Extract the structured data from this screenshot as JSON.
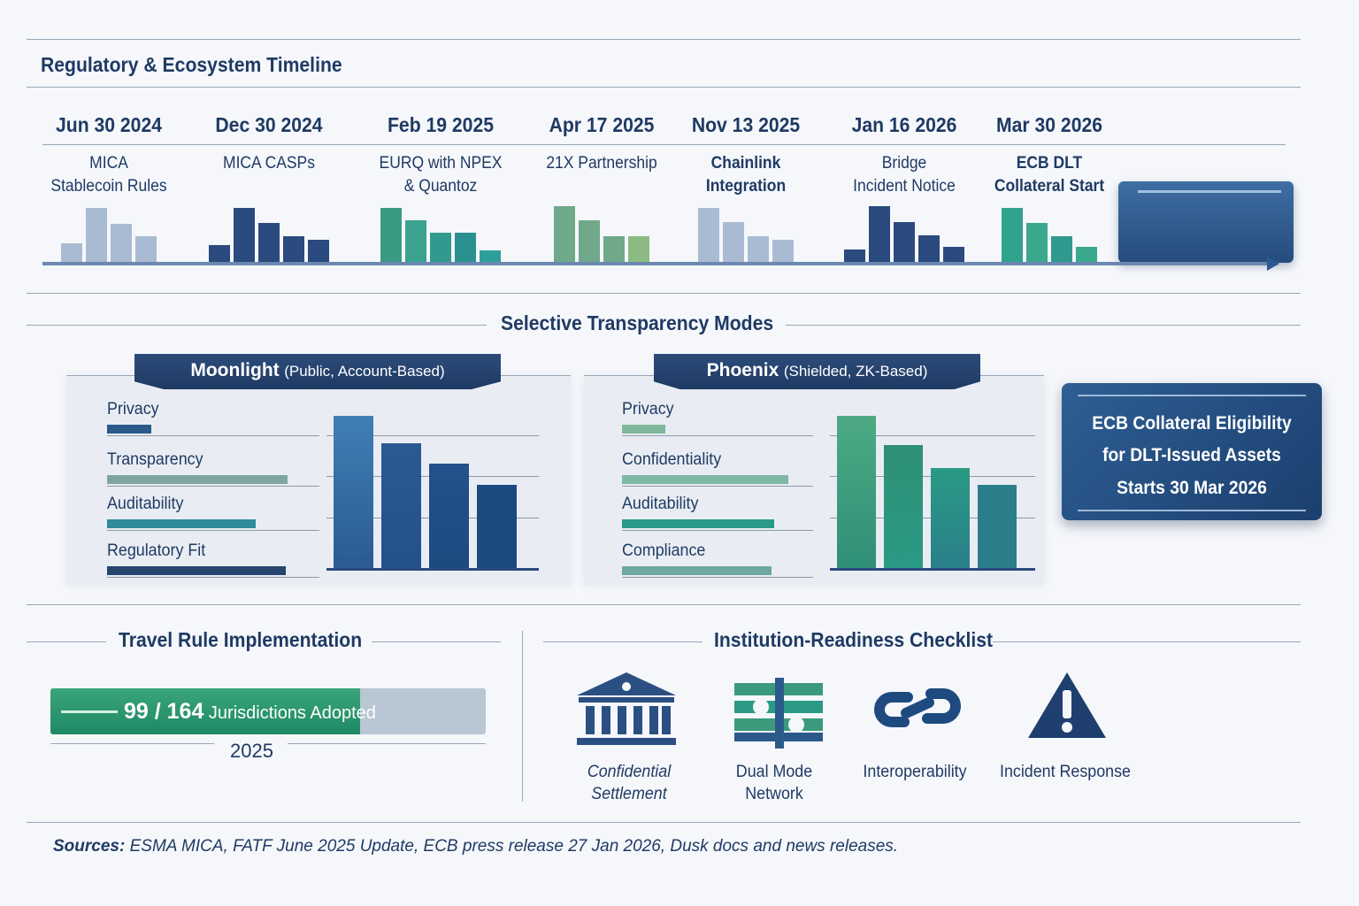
{
  "timeline": {
    "title": "Regulatory & Ecosystem Timeline",
    "events": [
      {
        "date": "Jun 30 2024",
        "line1": "MICA",
        "line2": "Stablecoin Rules",
        "bold": false,
        "bars": [
          22,
          62,
          44,
          30
        ],
        "palette": [
          "#a9bbd3",
          "#a9bbd3",
          "#a9bbd3",
          "#a9bbd3"
        ]
      },
      {
        "date": "Dec 30 2024",
        "line1": "MICA CASPs",
        "line2": "",
        "bold": false,
        "bars": [
          20,
          62,
          45,
          30,
          26
        ],
        "palette": [
          "#2b4a7d",
          "#2b4a7d",
          "#2b4a7d",
          "#2b4a7d",
          "#2b4a7d"
        ]
      },
      {
        "date": "Feb 19 2025",
        "line1": "EURQ with NPEX",
        "line2": "& Quantoz",
        "bold": false,
        "bars": [
          62,
          48,
          34,
          34,
          14
        ],
        "palette": [
          "#3a9a83",
          "#3aa28f",
          "#2f9a8d",
          "#2a9190",
          "#2f9f9b"
        ]
      },
      {
        "date": "Apr 17 2025",
        "line1": "21X Partnership",
        "line2": "",
        "bold": false,
        "bars": [
          64,
          48,
          30,
          30
        ],
        "palette": [
          "#6fa98a",
          "#6fa98a",
          "#6fa98a",
          "#8cbb82"
        ]
      },
      {
        "date": "Nov 13 2025",
        "line1": "Chainlink",
        "line2": "Integration",
        "bold": true,
        "bars": [
          62,
          46,
          30,
          26
        ],
        "palette": [
          "#a9bbd3",
          "#a9bbd3",
          "#a9bbd3",
          "#a9bbd3"
        ]
      },
      {
        "date": "Jan 16 2026",
        "line1": "Bridge",
        "line2": "Incident Notice",
        "bold": false,
        "bars": [
          15,
          64,
          46,
          31,
          18
        ],
        "palette": [
          "#2b4a7d",
          "#2b4a7d",
          "#2b4a7d",
          "#2b4a7d",
          "#2b4a7d"
        ]
      },
      {
        "date": "Mar 30 2026",
        "line1": "ECB DLT",
        "line2": "Collateral Start",
        "bold": true,
        "bars": [
          62,
          45,
          30,
          18
        ],
        "palette": [
          "#2fa38b",
          "#3aa88c",
          "#2f9a8d",
          "#3aa88c"
        ]
      }
    ]
  },
  "transparency": {
    "title": "Selective Transparency Modes",
    "moonlight": {
      "name": "Moonlight",
      "subtitle": "(Public, Account-Based)",
      "metrics": [
        {
          "label": "Privacy",
          "score": 0.21
        },
        {
          "label": "Transparency",
          "score": 0.85
        },
        {
          "label": "Auditability",
          "score": 0.7
        },
        {
          "label": "Regulatory Fit",
          "score": 0.84
        }
      ],
      "bars": [
        100,
        82,
        69,
        55
      ],
      "colors": [
        "#3f7fb5",
        "#2b5a93",
        "#24508c",
        "#1c4a80"
      ],
      "metric_colors": [
        "#2b5a8a",
        "#7fa5a0",
        "#2f8a9a",
        "#24456e"
      ]
    },
    "phoenix": {
      "name": "Phoenix",
      "subtitle": "(Shielded, ZK-Based)",
      "metrics": [
        {
          "label": "Privacy",
          "score": 0.21
        },
        {
          "label": "Confidentiality",
          "score": 0.8
        },
        {
          "label": "Auditability",
          "score": 0.73
        },
        {
          "label": "Compliance",
          "score": 0.72
        }
      ],
      "bars": [
        100,
        81,
        66,
        55
      ],
      "colors": [
        "#4daa84",
        "#2f8f77",
        "#2a9a84",
        "#2a7f8a"
      ],
      "metric_colors": [
        "#7fb89a",
        "#7fb8a4",
        "#2a9a8a",
        "#6fa8a0"
      ]
    },
    "callout": {
      "line1": "ECB Collateral Eligibility",
      "line2": "for DLT-Issued Assets",
      "line3": "Starts 30 Mar 2026"
    }
  },
  "travel_rule": {
    "title": "Travel Rule Implementation",
    "adopted": 99,
    "total": 164,
    "value_text": "99 / 164",
    "label": "Jurisdictions Adopted",
    "year": "2025"
  },
  "checklist": {
    "title": "Institution-Readiness Checklist",
    "items": [
      {
        "icon": "bank-icon",
        "line1": "Confidential Settlement",
        "line2": ""
      },
      {
        "icon": "dual-mode-icon",
        "line1": "Dual Mode",
        "line2": "Network"
      },
      {
        "icon": "chain-link-icon",
        "line1": "Interoperability",
        "line2": ""
      },
      {
        "icon": "warning-icon",
        "line1": "Incident Response",
        "line2": ""
      }
    ]
  },
  "sources": {
    "prefix": "Sources:",
    "text": "ESMA MICA, FATF June 2025 Update, ECB press release 27 Jan 2026, Dusk docs and news releases."
  },
  "chart_data": [
    {
      "type": "bar",
      "title": "Regulatory & Ecosystem Timeline",
      "categories": [
        "Jun 30 2024",
        "Dec 30 2024",
        "Feb 19 2025",
        "Apr 17 2025",
        "Nov 13 2025",
        "Jan 16 2026",
        "Mar 30 2026"
      ],
      "annotations": [
        "MICA Stablecoin Rules",
        "MICA CASPs",
        "EURQ with NPEX & Quantoz",
        "21X Partnership",
        "Chainlink Integration",
        "Bridge Incident Notice",
        "ECB DLT Collateral Start"
      ]
    },
    {
      "type": "bar",
      "title": "Moonlight (Public, Account-Based)",
      "categories": [
        "Privacy",
        "Transparency",
        "Auditability",
        "Regulatory Fit"
      ],
      "values": [
        100,
        82,
        69,
        55
      ]
    },
    {
      "type": "bar",
      "title": "Phoenix (Shielded, ZK-Based)",
      "categories": [
        "Privacy",
        "Confidentiality",
        "Auditability",
        "Compliance"
      ],
      "values": [
        100,
        81,
        66,
        55
      ]
    }
  ]
}
